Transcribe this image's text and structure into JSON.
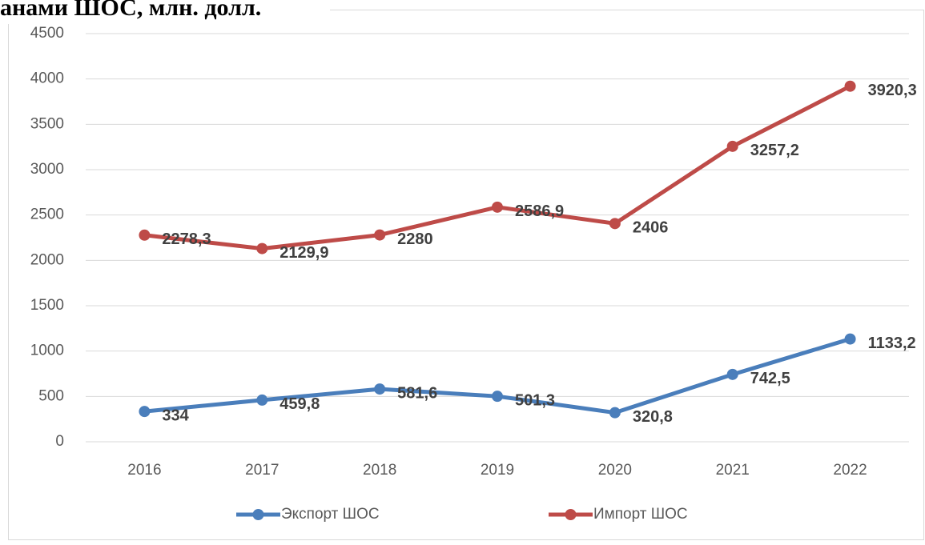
{
  "chart_data": {
    "type": "line",
    "title": "анами ШОС, млн. долл.",
    "categories": [
      "2016",
      "2017",
      "2018",
      "2019",
      "2020",
      "2021",
      "2022"
    ],
    "series": [
      {
        "name": "Экспорт ШОС",
        "color": "#4a7ebb",
        "values": [
          334,
          459.8,
          581.6,
          501.3,
          320.8,
          742.5,
          1133.2
        ],
        "value_labels": [
          "334",
          "459,8",
          "581,6",
          "501,3",
          "320,8",
          "742,5",
          "1133,2"
        ]
      },
      {
        "name": "Импорт ШОС",
        "color": "#be4b48",
        "values": [
          2278.3,
          2129.9,
          2280,
          2586.9,
          2406,
          3257.2,
          3920.3
        ],
        "value_labels": [
          "2278,3",
          "2129,9",
          "2280",
          "2586,9",
          "2406",
          "3257,2",
          "3920,3"
        ]
      }
    ],
    "ylim": [
      0,
      4500
    ],
    "yticks": [
      0,
      500,
      1000,
      1500,
      2000,
      2500,
      3000,
      3500,
      4000,
      4500
    ],
    "grid": true,
    "legend": "bottom"
  }
}
